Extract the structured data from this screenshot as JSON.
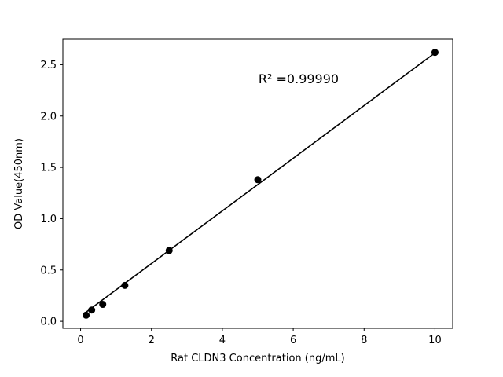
{
  "chart_data": {
    "type": "scatter",
    "title": "",
    "xlabel": "Rat CLDN3 Concentration (ng/mL)",
    "ylabel": "OD Value(450nm)",
    "annotation": "R² =0.99990",
    "x": [
      0.156,
      0.313,
      0.625,
      1.25,
      2.5,
      5,
      10
    ],
    "y": [
      0.06,
      0.11,
      0.165,
      0.35,
      0.69,
      1.38,
      2.62
    ],
    "fit_line": {
      "x": [
        0.156,
        10
      ],
      "y": [
        0.09,
        2.615
      ]
    },
    "xlim": [
      -0.5,
      10.5
    ],
    "ylim": [
      -0.068,
      2.748
    ],
    "x_tick_values": [
      0,
      2,
      4,
      6,
      8,
      10
    ],
    "x_tick_labels": [
      "0",
      "2",
      "4",
      "6",
      "8",
      "10"
    ],
    "y_tick_values": [
      0.0,
      0.5,
      1.0,
      1.5,
      2.0,
      2.5
    ],
    "y_tick_labels": [
      "0.0",
      "0.5",
      "1.0",
      "1.5",
      "2.0",
      "2.5"
    ],
    "grid": false,
    "legend": "none",
    "colors": {
      "marker": "#000000",
      "line": "#000000",
      "axis": "#000000",
      "background": "#ffffff"
    }
  }
}
